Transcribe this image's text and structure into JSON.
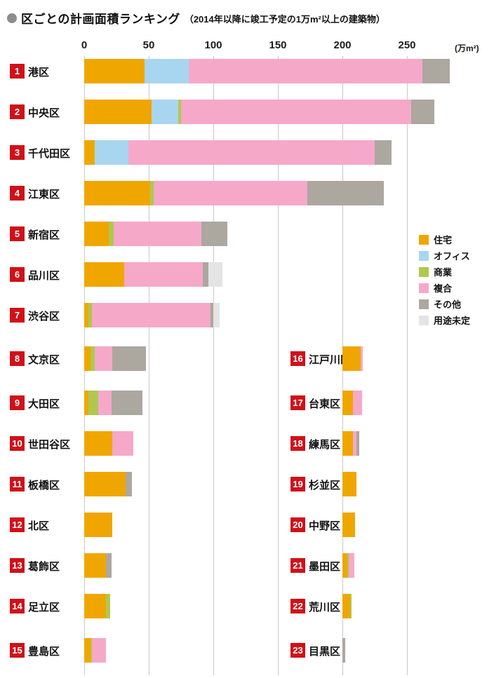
{
  "header": {
    "title": "区ごとの計画面積ランキング",
    "subtitle": "（2014年以降に竣工予定の1万m²以上の建築物）"
  },
  "chart_data": {
    "type": "bar",
    "orientation": "horizontal",
    "stacked": true,
    "title": "区ごとの計画面積ランキング（2014年以降に竣工予定の1万m²以上の建築物）",
    "unit": "万m²",
    "unit_label": "(万m²)",
    "ticks": [
      0,
      50,
      100,
      150,
      200,
      250
    ],
    "xlim": [
      0,
      300
    ],
    "grid": true,
    "legend_position": "middle-right",
    "series_names": [
      "住宅",
      "オフィス",
      "商業",
      "複合",
      "その他",
      "用途未定"
    ],
    "legend": [
      {
        "label": "住宅",
        "color": "#f0a600"
      },
      {
        "label": "オフィス",
        "color": "#a8d6f0"
      },
      {
        "label": "商業",
        "color": "#b0c84e"
      },
      {
        "label": "複合",
        "color": "#f6a8c9"
      },
      {
        "label": "その他",
        "color": "#aca79f"
      },
      {
        "label": "用途未定",
        "color": "#e4e4e4"
      }
    ],
    "right_column_baseline_at_value": 200,
    "left_column": {
      "rows": [
        {
          "rank": 1,
          "ward": "港区",
          "values": [
            47,
            34,
            0,
            181,
            21,
            0
          ],
          "total": 283
        },
        {
          "rank": 2,
          "ward": "中央区",
          "values": [
            52,
            21,
            2,
            178,
            18,
            0
          ],
          "total": 271
        },
        {
          "rank": 3,
          "ward": "千代田区",
          "values": [
            8,
            26,
            0,
            191,
            13,
            0
          ],
          "total": 238
        },
        {
          "rank": 4,
          "ward": "江東区",
          "values": [
            51,
            0,
            3,
            119,
            59,
            0
          ],
          "total": 232
        },
        {
          "rank": 5,
          "ward": "新宿区",
          "values": [
            19,
            0,
            4,
            68,
            20,
            0
          ],
          "total": 111
        },
        {
          "rank": 6,
          "ward": "品川区",
          "values": [
            31,
            0,
            0,
            61,
            4,
            11
          ],
          "total": 107
        },
        {
          "rank": 7,
          "ward": "渋谷区",
          "values": [
            3,
            0,
            3,
            92,
            2,
            5
          ],
          "total": 105
        },
        {
          "rank": 8,
          "ward": "文京区",
          "values": [
            5,
            0,
            3,
            14,
            26,
            0
          ],
          "total": 48
        },
        {
          "rank": 9,
          "ward": "大田区",
          "values": [
            3,
            0,
            8,
            10,
            24,
            0
          ],
          "total": 45
        },
        {
          "rank": 10,
          "ward": "世田谷区",
          "values": [
            22,
            0,
            0,
            16,
            0,
            0
          ],
          "total": 38
        },
        {
          "rank": 11,
          "ward": "板橋区",
          "values": [
            32,
            0,
            0,
            0,
            5,
            0
          ],
          "total": 37
        },
        {
          "rank": 12,
          "ward": "北区",
          "values": [
            22,
            0,
            0,
            0,
            0,
            0
          ],
          "total": 22
        },
        {
          "rank": 13,
          "ward": "葛飾区",
          "values": [
            17,
            0,
            0,
            0,
            4,
            0
          ],
          "total": 21
        },
        {
          "rank": 14,
          "ward": "足立区",
          "values": [
            17,
            0,
            3,
            0,
            0,
            0
          ],
          "total": 20
        },
        {
          "rank": 15,
          "ward": "豊島区",
          "values": [
            5,
            0,
            1,
            11,
            0,
            0
          ],
          "total": 17
        }
      ]
    },
    "right_column": {
      "rows": [
        {
          "rank": 16,
          "ward": "江戸川区",
          "values": [
            14,
            0,
            0,
            2,
            0,
            0
          ],
          "total": 16
        },
        {
          "rank": 17,
          "ward": "台東区",
          "values": [
            8,
            0,
            0,
            7,
            0,
            0
          ],
          "total": 15
        },
        {
          "rank": 18,
          "ward": "練馬区",
          "values": [
            8,
            0,
            0,
            3,
            2,
            0
          ],
          "total": 13
        },
        {
          "rank": 19,
          "ward": "杉並区",
          "values": [
            11,
            0,
            0,
            0,
            0,
            0
          ],
          "total": 11
        },
        {
          "rank": 20,
          "ward": "中野区",
          "values": [
            10,
            0,
            0,
            0,
            0,
            0
          ],
          "total": 10
        },
        {
          "rank": 21,
          "ward": "墨田区",
          "values": [
            4,
            0,
            1,
            4,
            0,
            0
          ],
          "total": 9
        },
        {
          "rank": 22,
          "ward": "荒川区",
          "values": [
            6,
            0,
            1,
            0,
            0,
            0
          ],
          "total": 7
        },
        {
          "rank": 23,
          "ward": "目黒区",
          "values": [
            0,
            0,
            0,
            0,
            2,
            0
          ],
          "total": 2
        }
      ]
    }
  }
}
